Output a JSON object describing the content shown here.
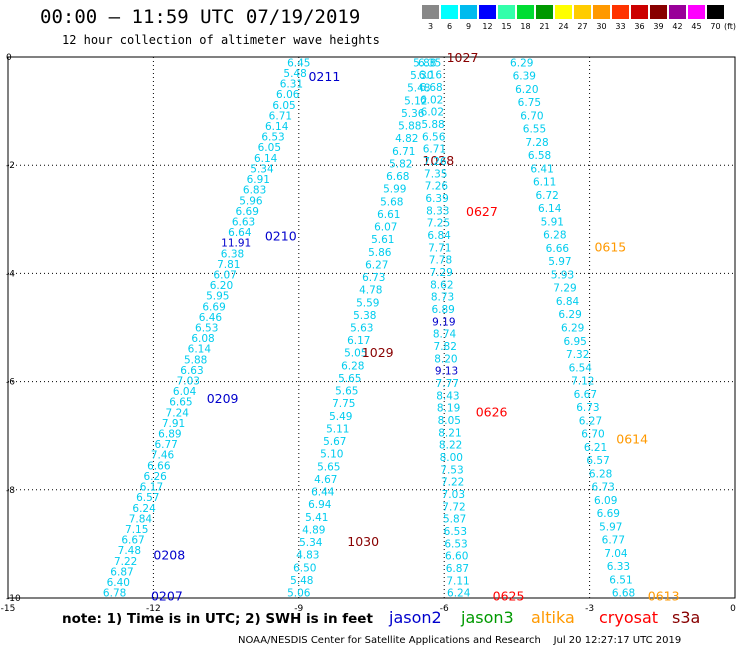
{
  "header": {
    "title": "00:00 – 11:59 UTC 07/19/2019",
    "subtitle": "12 hour collection of altimeter wave heights"
  },
  "colorbar": {
    "labels": [
      "3",
      "6",
      "9",
      "12",
      "15",
      "18",
      "21",
      "24",
      "27",
      "30",
      "33",
      "36",
      "39",
      "42",
      "45",
      "70"
    ],
    "colors": [
      "#888888",
      "#00ffff",
      "#00bbee",
      "#0000ff",
      "#33ffaa",
      "#00dd33",
      "#009900",
      "#ffff00",
      "#ffcc00",
      "#ff9900",
      "#ff3300",
      "#cc0000",
      "#880000",
      "#990099",
      "#ff00ff",
      "#000000"
    ],
    "units": "(ft)"
  },
  "footer": {
    "note": "note: 1) Time is in UTC; 2) SWH is in feet",
    "credit": "NOAA/NESDIS Center for Satellite Applications and Research    Jul 20 12:27:17 UTC 2019"
  },
  "legend": [
    {
      "name": "jason2",
      "color": "#0000cc"
    },
    {
      "name": "jason3",
      "color": "#009900"
    },
    {
      "name": "altika",
      "color": "#ff9900"
    },
    {
      "name": "cryosat",
      "color": "#ff0000"
    },
    {
      "name": "s3a",
      "color": "#880000"
    }
  ],
  "chart_data": {
    "type": "scatter",
    "title": "00:00 – 11:59 UTC 07/19/2019",
    "subtitle": "12 hour collection of altimeter wave heights",
    "xlim": [
      -15,
      0
    ],
    "ylim": [
      -10,
      0
    ],
    "xticks": [
      "-15",
      "-12",
      "-9",
      "-6",
      "-3",
      "0"
    ],
    "yticks": [
      "0",
      "-2",
      "-4",
      "-6",
      "-8",
      "-10"
    ],
    "grid": true,
    "value_color": "#00ccee",
    "tracks": [
      {
        "sat": "jason2",
        "x0": -9.0,
        "x1": -12.8,
        "values": [
          "6.45",
          "5.48",
          "6.31",
          "6.06",
          "6.05",
          "6.71",
          "6.14",
          "6.53",
          "6.05",
          "6.14",
          "5.34",
          "6.91",
          "6.83",
          "5.96",
          "6.69",
          "6.63",
          "6.64",
          "11.91",
          "6.38",
          "7.81",
          "6.07",
          "6.20",
          "5.95",
          "6.69",
          "6.46",
          "6.53",
          "6.08",
          "6.14",
          "5.88",
          "6.63",
          "7.03",
          "6.04",
          "6.65",
          "7.24",
          "7.91",
          "6.89",
          "6.77",
          "7.46",
          "6.66",
          "6.26",
          "6.17",
          "6.57",
          "6.24",
          "7.84",
          "7.15",
          "6.67",
          "7.48",
          "7.22",
          "6.87",
          "6.40",
          "6.78"
        ],
        "labels": [
          {
            "text": "0211",
            "x": -8.8,
            "y": -0.35
          },
          {
            "text": "0210",
            "x": -9.7,
            "y": -3.3
          },
          {
            "text": "0209",
            "x": -10.9,
            "y": -6.3
          },
          {
            "text": "0208",
            "x": -12.0,
            "y": -9.2
          },
          {
            "text": "0207",
            "x": -12.05,
            "y": -9.95
          }
        ]
      },
      {
        "sat": "s3a",
        "x0": -6.4,
        "x1": -9.0,
        "values": [
          "5.88",
          "5.30",
          "5.48",
          "5.12",
          "5.36",
          "5.88",
          "4.82",
          "6.71",
          "5.82",
          "6.68",
          "5.99",
          "5.68",
          "6.61",
          "6.07",
          "5.61",
          "5.86",
          "6.27",
          "6.73",
          "4.78",
          "5.59",
          "5.38",
          "5.63",
          "6.17",
          "5.05",
          "6.28",
          "5.65",
          "5.65",
          "7.75",
          "5.49",
          "5.11",
          "5.67",
          "5.10",
          "5.65",
          "4.67",
          "6.44",
          "6.94",
          "5.41",
          "4.89",
          "5.34",
          "4.83",
          "6.50",
          "5.48",
          "5.06"
        ],
        "labels": [
          {
            "text": "1027",
            "x": -5.95,
            "y": 0.0
          },
          {
            "text": "1028",
            "x": -6.45,
            "y": -1.9
          },
          {
            "text": "1029",
            "x": -7.7,
            "y": -5.45
          },
          {
            "text": "1030",
            "x": -8.0,
            "y": -8.95
          }
        ]
      },
      {
        "sat": "cryosat",
        "x0": -6.3,
        "x1": -5.7,
        "values": [
          "6.35",
          "6.16",
          "6.68",
          "6.02",
          "6.02",
          "5.88",
          "6.56",
          "6.71",
          "7.26",
          "7.35",
          "7.26",
          "6.39",
          "8.33",
          "7.25",
          "6.84",
          "7.71",
          "7.78",
          "7.29",
          "8.62",
          "8.73",
          "6.89",
          "9.19",
          "8.74",
          "7.82",
          "8.20",
          "9.13",
          "7.77",
          "8.43",
          "8.19",
          "8.05",
          "8.21",
          "8.22",
          "8.00",
          "7.53",
          "7.22",
          "7.03",
          "7.72",
          "5.87",
          "6.53",
          "6.53",
          "6.60",
          "6.87",
          "7.11",
          "6.24"
        ],
        "labels": [
          {
            "text": "0627",
            "x": -5.55,
            "y": -2.85
          },
          {
            "text": "0626",
            "x": -5.35,
            "y": -6.55
          },
          {
            "text": "0625",
            "x": -5.0,
            "y": -9.95
          }
        ]
      },
      {
        "sat": "altika",
        "x0": -4.4,
        "x1": -2.3,
        "values": [
          "6.29",
          "6.39",
          "6.20",
          "6.75",
          "6.70",
          "6.55",
          "7.28",
          "6.58",
          "6.41",
          "6.11",
          "6.72",
          "6.14",
          "5.91",
          "6.28",
          "6.66",
          "5.97",
          "5.93",
          "7.29",
          "6.84",
          "6.29",
          "6.29",
          "6.95",
          "7.32",
          "6.54",
          "7.12",
          "6.67",
          "6.73",
          "6.27",
          "6.70",
          "6.21",
          "6.57",
          "6.28",
          "6.73",
          "6.09",
          "6.69",
          "5.97",
          "6.77",
          "7.04",
          "6.33",
          "6.51",
          "6.68"
        ],
        "labels": [
          {
            "text": "0615",
            "x": -2.9,
            "y": -3.5
          },
          {
            "text": "0614",
            "x": -2.45,
            "y": -7.05
          },
          {
            "text": "0613",
            "x": -1.8,
            "y": -9.95
          }
        ]
      }
    ]
  }
}
